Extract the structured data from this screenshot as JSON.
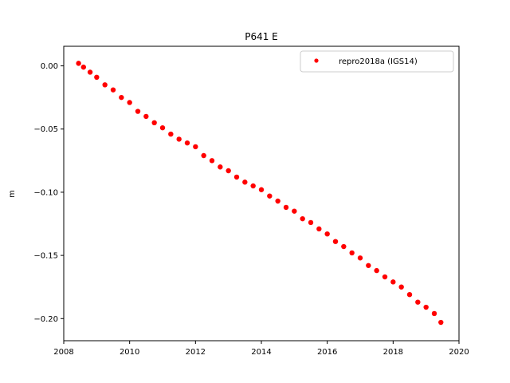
{
  "chart_data": {
    "type": "scatter",
    "title": "P641 E",
    "xlabel": "",
    "ylabel": "m",
    "xlim": [
      2008.0,
      2020.0
    ],
    "ylim": [
      -0.2175,
      0.0155
    ],
    "x_ticks": [
      2008,
      2010,
      2012,
      2014,
      2016,
      2018,
      2020
    ],
    "x_tick_labels": [
      "2008",
      "2010",
      "2012",
      "2014",
      "2016",
      "2018",
      "2020"
    ],
    "y_ticks": [
      0.0,
      -0.05,
      -0.1,
      -0.15,
      -0.2
    ],
    "y_tick_labels": [
      "0.00",
      "−0.05",
      "−0.10",
      "−0.15",
      "−0.20"
    ],
    "grid": false,
    "legend_position": "upper right",
    "series": [
      {
        "name": "repro2018a (IGS14)",
        "color": "#ff0000",
        "marker": "point",
        "x": [
          2008.45,
          2008.6,
          2008.8,
          2009.0,
          2009.25,
          2009.5,
          2009.75,
          2010.0,
          2010.25,
          2010.5,
          2010.75,
          2011.0,
          2011.25,
          2011.5,
          2011.75,
          2012.0,
          2012.25,
          2012.5,
          2012.75,
          2013.0,
          2013.25,
          2013.5,
          2013.75,
          2014.0,
          2014.25,
          2014.5,
          2014.75,
          2015.0,
          2015.25,
          2015.5,
          2015.75,
          2016.0,
          2016.25,
          2016.5,
          2016.75,
          2017.0,
          2017.25,
          2017.5,
          2017.75,
          2018.0,
          2018.25,
          2018.5,
          2018.75,
          2019.0,
          2019.25,
          2019.45
        ],
        "y": [
          0.002,
          -0.001,
          -0.005,
          -0.009,
          -0.015,
          -0.019,
          -0.025,
          -0.029,
          -0.036,
          -0.04,
          -0.045,
          -0.049,
          -0.054,
          -0.058,
          -0.061,
          -0.064,
          -0.071,
          -0.075,
          -0.08,
          -0.083,
          -0.088,
          -0.092,
          -0.095,
          -0.098,
          -0.103,
          -0.107,
          -0.112,
          -0.115,
          -0.121,
          -0.124,
          -0.129,
          -0.133,
          -0.139,
          -0.143,
          -0.148,
          -0.152,
          -0.158,
          -0.162,
          -0.167,
          -0.171,
          -0.175,
          -0.181,
          -0.187,
          -0.191,
          -0.196,
          -0.203
        ]
      }
    ]
  }
}
